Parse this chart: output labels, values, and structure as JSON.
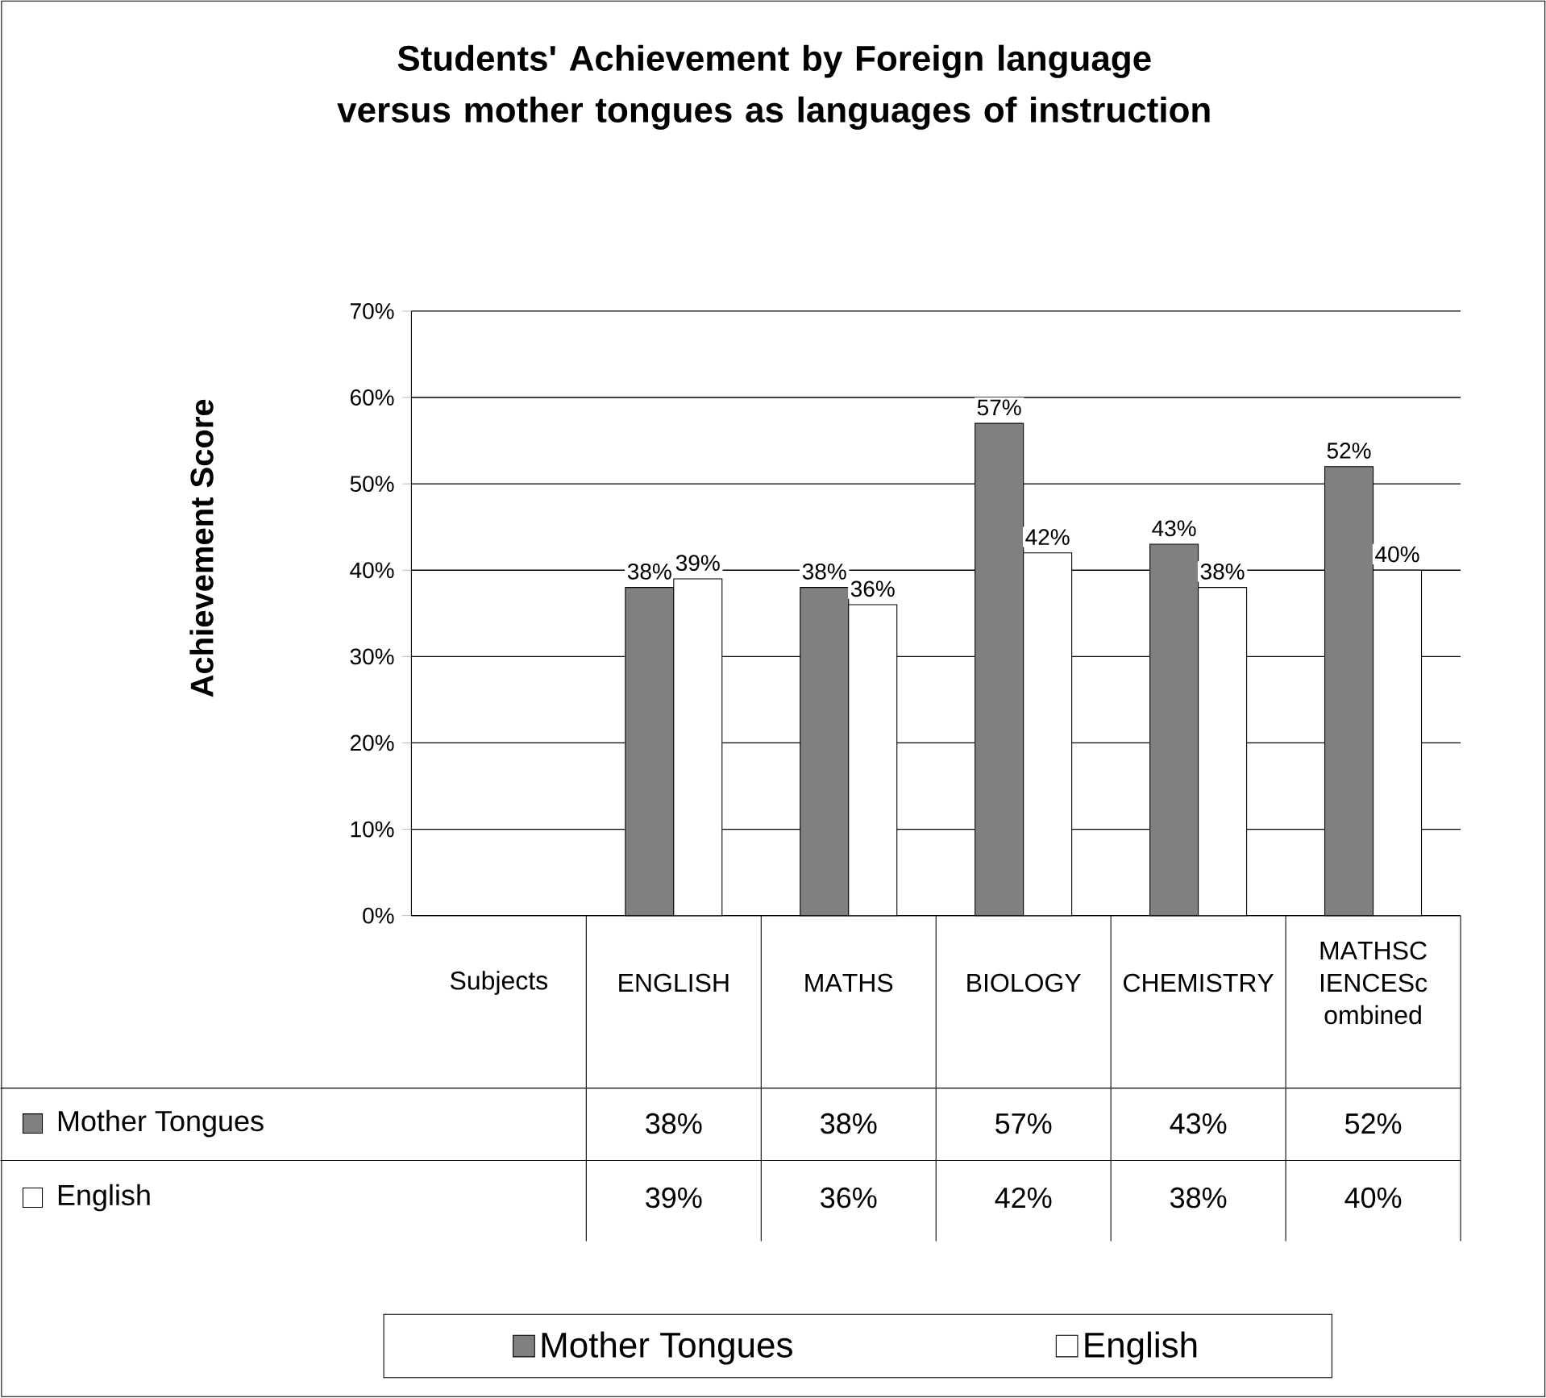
{
  "chart_data": {
    "type": "bar",
    "title": "Students' Achievement by Foreign language versus mother tongues as languages of instruction",
    "ylabel": "Achievement Score",
    "categories": [
      "Subjects",
      "ENGLISH",
      "MATHS",
      "BIOLOGY",
      "CHEMISTRY",
      "MATHSCIENCEScombined"
    ],
    "series": [
      {
        "name": "Mother Tongues",
        "color": "#808080",
        "values": [
          null,
          38,
          38,
          57,
          43,
          52
        ],
        "value_labels": [
          null,
          "38%",
          "38%",
          "57%",
          "43%",
          "52%"
        ]
      },
      {
        "name": "English",
        "color": "#ffffff",
        "values": [
          null,
          39,
          36,
          42,
          38,
          40
        ],
        "value_labels": [
          null,
          "39%",
          "36%",
          "42%",
          "38%",
          "40%"
        ]
      }
    ],
    "ylim": [
      0,
      70
    ],
    "yticks": [
      {
        "value": 0,
        "label": "0%"
      },
      {
        "value": 10,
        "label": "10%"
      },
      {
        "value": 20,
        "label": "20%"
      },
      {
        "value": 30,
        "label": "30%"
      },
      {
        "value": 40,
        "label": "40%"
      },
      {
        "value": 50,
        "label": "50%"
      },
      {
        "value": 60,
        "label": "60%"
      },
      {
        "value": 70,
        "label": "70%"
      }
    ],
    "grid": "y",
    "legend": "bottom",
    "data_labels": true
  }
}
